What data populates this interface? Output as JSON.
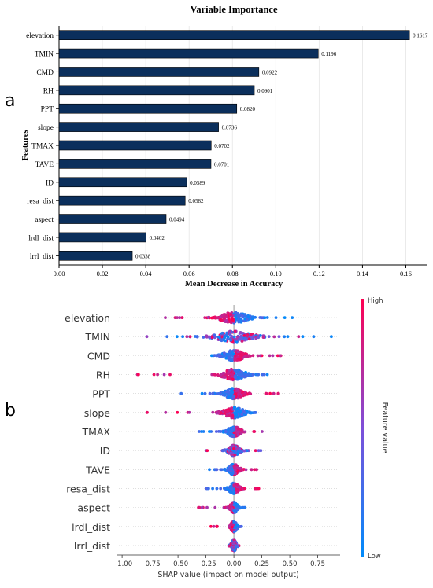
{
  "panels": {
    "a_label": "a",
    "b_label": "b"
  },
  "chart_data": [
    {
      "type": "bar",
      "orientation": "horizontal",
      "title": "Variable Importance",
      "xlabel": "Mean Decrease in Accuracy",
      "ylabel": "Features",
      "xlim": [
        0,
        0.17
      ],
      "xticks": [
        "0.00",
        "0.02",
        "0.04",
        "0.06",
        "0.08",
        "0.10",
        "0.12",
        "0.14",
        "0.16"
      ],
      "grid": "x",
      "bar_color": "#0b2f5c",
      "categories": [
        "elevation",
        "TMIN",
        "CMD",
        "RH",
        "PPT",
        "slope",
        "TMAX",
        "TAVE",
        "ID",
        "resa_dist",
        "aspect",
        "lrdl_dist",
        "lrrl_dist"
      ],
      "values": [
        0.1617,
        0.1196,
        0.0922,
        0.0901,
        0.082,
        0.0736,
        0.0702,
        0.0701,
        0.0589,
        0.0582,
        0.0494,
        0.0402,
        0.0338
      ],
      "value_labels": [
        "0.1617",
        "0.1196",
        "0.0922",
        "0.0901",
        "0.0820",
        "0.0736",
        "0.0702",
        "0.0701",
        "0.0589",
        "0.0582",
        "0.0494",
        "0.0402",
        "0.0338"
      ]
    },
    {
      "type": "scatter",
      "subtype": "shap-beeswarm",
      "xlabel": "SHAP value (impact on model output)",
      "xlim": [
        -1.05,
        0.95
      ],
      "xticks": [
        "−1.00",
        "−0.75",
        "−0.50",
        "−0.25",
        "0.00",
        "0.25",
        "0.50",
        "0.75"
      ],
      "colorbar": {
        "high_label": "High",
        "low_label": "Low",
        "title": "Feature value",
        "high_color": "#ff0051",
        "low_color": "#008bfb"
      },
      "features": [
        {
          "name": "elevation",
          "min": -0.62,
          "max": 0.62,
          "high_side": "negative",
          "spread": 0.22
        },
        {
          "name": "TMIN",
          "min": -0.82,
          "max": 0.88,
          "high_side": "mixed",
          "spread": 0.3
        },
        {
          "name": "CMD",
          "min": -0.35,
          "max": 0.42,
          "high_side": "positive",
          "spread": 0.16
        },
        {
          "name": "RH",
          "min": -0.92,
          "max": 0.3,
          "high_side": "negative",
          "spread": 0.18
        },
        {
          "name": "PPT",
          "min": -0.48,
          "max": 0.4,
          "high_side": "positive",
          "spread": 0.14
        },
        {
          "name": "slope",
          "min": -0.8,
          "max": 0.37,
          "high_side": "negative",
          "spread": 0.16
        },
        {
          "name": "TMAX",
          "min": -0.33,
          "max": 0.26,
          "high_side": "positive",
          "spread": 0.1
        },
        {
          "name": "ID",
          "min": -0.25,
          "max": 0.26,
          "high_side": "mixed",
          "spread": 0.09
        },
        {
          "name": "TAVE",
          "min": -0.22,
          "max": 0.24,
          "high_side": "positive",
          "spread": 0.08
        },
        {
          "name": "resa_dist",
          "min": -0.25,
          "max": 0.23,
          "high_side": "positive",
          "spread": 0.08
        },
        {
          "name": "aspect",
          "min": -0.33,
          "max": 0.12,
          "high_side": "negative",
          "spread": 0.06
        },
        {
          "name": "lrdl_dist",
          "min": -0.3,
          "max": 0.12,
          "high_side": "negative",
          "spread": 0.05
        },
        {
          "name": "lrrl_dist",
          "min": -0.05,
          "max": 0.05,
          "high_side": "mixed",
          "spread": 0.02
        }
      ]
    }
  ]
}
